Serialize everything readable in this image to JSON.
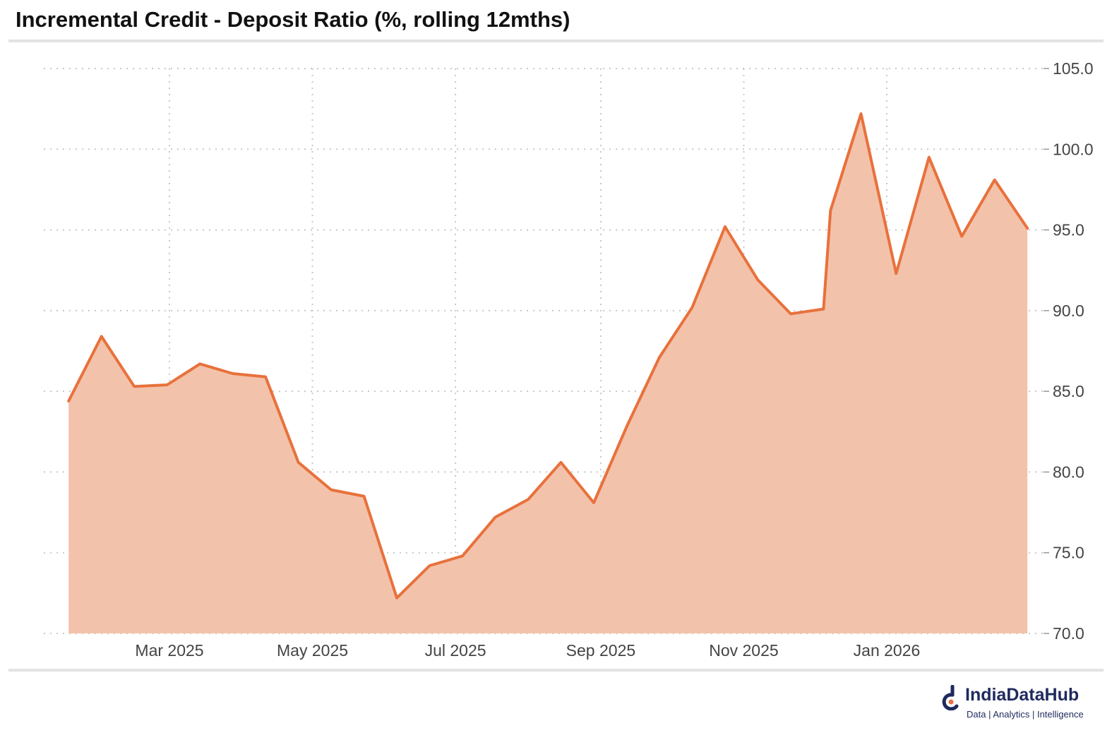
{
  "title": "Incremental Credit - Deposit Ratio (%, rolling 12mths)",
  "colors": {
    "line": "#e8713c",
    "fill": "#f3c2ab",
    "grid": "#c8c8c8",
    "rule": "#e3e3e3",
    "brand": "#1f2a5e"
  },
  "logo": {
    "name": "IndiaDataHub",
    "tagline": "Data | Analytics | Intelligence"
  },
  "chart_data": {
    "type": "area",
    "title": "Incremental Credit - Deposit Ratio (%, rolling 12mths)",
    "xlabel": "",
    "ylabel": "",
    "x": [
      "2025-01-17",
      "2025-01-31",
      "2025-02-14",
      "2025-02-28",
      "2025-03-14",
      "2025-03-28",
      "2025-04-11",
      "2025-04-25",
      "2025-05-09",
      "2025-05-23",
      "2025-06-06",
      "2025-06-20",
      "2025-07-04",
      "2025-07-18",
      "2025-08-01",
      "2025-08-15",
      "2025-08-29",
      "2025-09-12",
      "2025-09-26",
      "2025-10-10",
      "2025-10-24",
      "2025-11-07",
      "2025-11-21",
      "2025-12-05",
      "2025-12-08",
      "2025-12-21",
      "2026-01-05",
      "2026-01-19",
      "2026-02-02",
      "2026-02-16",
      "2026-03-02"
    ],
    "series": [
      {
        "values": [
          84.4,
          88.4,
          85.3,
          85.4,
          86.7,
          86.1,
          85.9,
          80.6,
          78.9,
          78.5,
          72.2,
          74.2,
          74.8,
          77.2,
          78.3,
          80.6,
          78.1,
          82.8,
          87.1,
          90.2,
          95.2,
          91.9,
          89.8,
          90.1,
          96.2,
          102.2,
          92.3,
          99.5,
          94.6,
          98.1,
          95.1
        ]
      }
    ],
    "ylim": [
      70,
      105
    ],
    "yticks": [
      "70.0",
      "75.0",
      "80.0",
      "85.0",
      "90.0",
      "95.0",
      "100.0",
      "105.0"
    ],
    "xticks": [
      {
        "date": "2025-03-01",
        "label": "Mar 2025"
      },
      {
        "date": "2025-05-01",
        "label": "May 2025"
      },
      {
        "date": "2025-07-01",
        "label": "Jul 2025"
      },
      {
        "date": "2025-09-01",
        "label": "Sep 2025"
      },
      {
        "date": "2025-11-01",
        "label": "Nov 2025"
      },
      {
        "date": "2026-01-01",
        "label": "Jan 2026"
      }
    ],
    "grid": true,
    "y_axis_position": "right"
  }
}
